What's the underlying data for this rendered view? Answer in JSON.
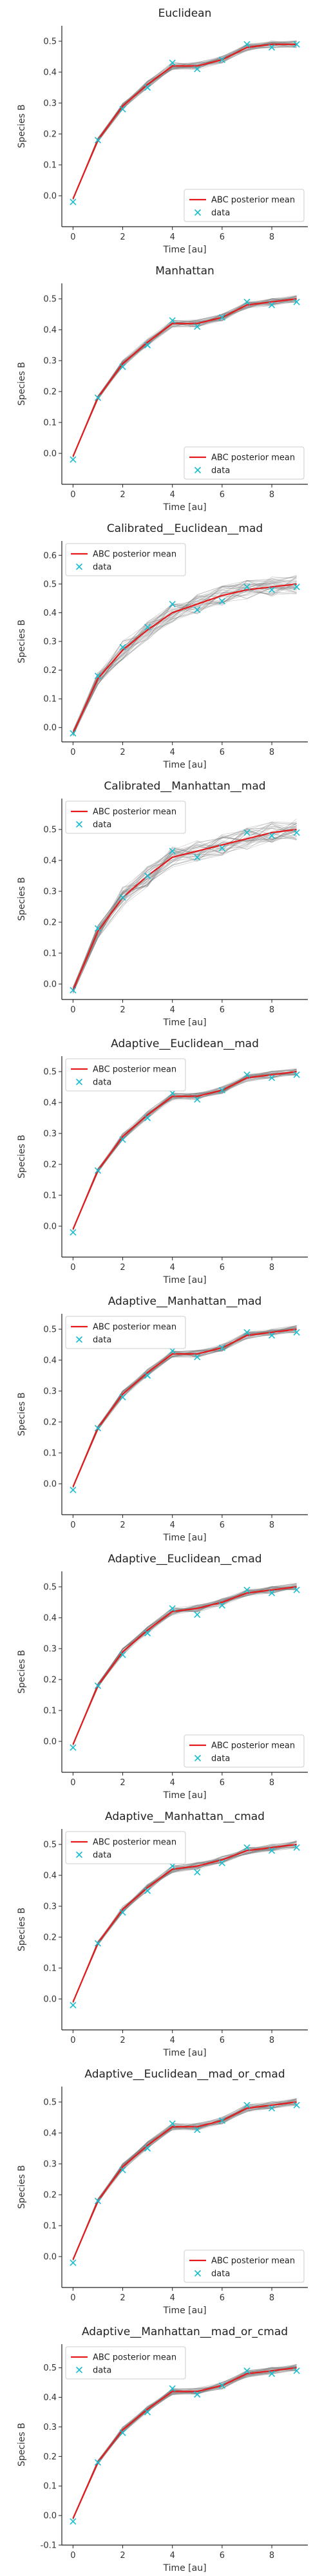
{
  "x_ticks": [
    0,
    2,
    4,
    6,
    8
  ],
  "xlabel": "Time [au]",
  "ylabel": "Species B",
  "legend": {
    "mean": "ABC posterior mean",
    "data": "data"
  },
  "colors": {
    "mean": "#e41a1c",
    "data": "#17becf",
    "samples": "#7f7f7f",
    "axis": "#222222"
  },
  "chart_data": [
    {
      "type": "line",
      "title": "Euclidean",
      "xlim": [
        -0.45,
        9.45
      ],
      "ylim": [
        -0.1,
        0.55
      ],
      "y_ticks": [
        0.0,
        0.1,
        0.2,
        0.3,
        0.4,
        0.5
      ],
      "legend_loc": "lower-right",
      "x": [
        0,
        1,
        2,
        3,
        4,
        5,
        6,
        7,
        8,
        9
      ],
      "data": [
        -0.02,
        0.18,
        0.28,
        0.35,
        0.43,
        0.41,
        0.44,
        0.49,
        0.48,
        0.49
      ],
      "mean": [
        -0.01,
        0.18,
        0.29,
        0.36,
        0.42,
        0.42,
        0.44,
        0.48,
        0.49,
        0.49
      ]
    },
    {
      "type": "line",
      "title": "Manhattan",
      "xlim": [
        -0.45,
        9.45
      ],
      "ylim": [
        -0.1,
        0.55
      ],
      "y_ticks": [
        0.0,
        0.1,
        0.2,
        0.3,
        0.4,
        0.5
      ],
      "legend_loc": "lower-right",
      "x": [
        0,
        1,
        2,
        3,
        4,
        5,
        6,
        7,
        8,
        9
      ],
      "data": [
        -0.02,
        0.18,
        0.28,
        0.35,
        0.43,
        0.41,
        0.44,
        0.49,
        0.48,
        0.49
      ],
      "mean": [
        -0.01,
        0.18,
        0.29,
        0.36,
        0.42,
        0.42,
        0.44,
        0.48,
        0.49,
        0.5
      ]
    },
    {
      "type": "line",
      "title": "Calibrated__Euclidean__mad",
      "xlim": [
        -0.45,
        9.45
      ],
      "ylim": [
        -0.05,
        0.65
      ],
      "y_ticks": [
        0.0,
        0.1,
        0.2,
        0.3,
        0.4,
        0.5,
        0.6
      ],
      "legend_loc": "upper-left",
      "x": [
        0,
        1,
        2,
        3,
        4,
        5,
        6,
        7,
        8,
        9
      ],
      "data": [
        -0.02,
        0.18,
        0.28,
        0.35,
        0.43,
        0.41,
        0.44,
        0.49,
        0.48,
        0.49
      ],
      "mean": [
        -0.02,
        0.17,
        0.27,
        0.34,
        0.4,
        0.43,
        0.46,
        0.48,
        0.49,
        0.5
      ]
    },
    {
      "type": "line",
      "title": "Calibrated__Manhattan__mad",
      "xlim": [
        -0.45,
        9.45
      ],
      "ylim": [
        -0.05,
        0.6
      ],
      "y_ticks": [
        0.0,
        0.1,
        0.2,
        0.3,
        0.4,
        0.5
      ],
      "legend_loc": "upper-left",
      "x": [
        0,
        1,
        2,
        3,
        4,
        5,
        6,
        7,
        8,
        9
      ],
      "data": [
        -0.02,
        0.18,
        0.28,
        0.35,
        0.43,
        0.41,
        0.44,
        0.49,
        0.48,
        0.49
      ],
      "mean": [
        -0.02,
        0.17,
        0.28,
        0.35,
        0.41,
        0.43,
        0.45,
        0.47,
        0.49,
        0.5
      ]
    },
    {
      "type": "line",
      "title": "Adaptive__Euclidean__mad",
      "xlim": [
        -0.45,
        9.45
      ],
      "ylim": [
        -0.1,
        0.55
      ],
      "y_ticks": [
        0.0,
        0.1,
        0.2,
        0.3,
        0.4,
        0.5
      ],
      "legend_loc": "upper-left",
      "x": [
        0,
        1,
        2,
        3,
        4,
        5,
        6,
        7,
        8,
        9
      ],
      "data": [
        -0.02,
        0.18,
        0.28,
        0.35,
        0.43,
        0.41,
        0.44,
        0.49,
        0.48,
        0.49
      ],
      "mean": [
        -0.01,
        0.18,
        0.29,
        0.36,
        0.42,
        0.42,
        0.44,
        0.48,
        0.49,
        0.5
      ]
    },
    {
      "type": "line",
      "title": "Adaptive__Manhattan__mad",
      "xlim": [
        -0.45,
        9.45
      ],
      "ylim": [
        -0.1,
        0.55
      ],
      "y_ticks": [
        0.0,
        0.1,
        0.2,
        0.3,
        0.4,
        0.5
      ],
      "legend_loc": "upper-left",
      "x": [
        0,
        1,
        2,
        3,
        4,
        5,
        6,
        7,
        8,
        9
      ],
      "data": [
        -0.02,
        0.18,
        0.28,
        0.35,
        0.43,
        0.41,
        0.44,
        0.49,
        0.48,
        0.49
      ],
      "mean": [
        -0.01,
        0.18,
        0.29,
        0.36,
        0.42,
        0.42,
        0.44,
        0.48,
        0.49,
        0.5
      ]
    },
    {
      "type": "line",
      "title": "Adaptive__Euclidean__cmad",
      "xlim": [
        -0.45,
        9.45
      ],
      "ylim": [
        -0.1,
        0.55
      ],
      "y_ticks": [
        0.0,
        0.1,
        0.2,
        0.3,
        0.4,
        0.5
      ],
      "legend_loc": "lower-right",
      "x": [
        0,
        1,
        2,
        3,
        4,
        5,
        6,
        7,
        8,
        9
      ],
      "data": [
        -0.02,
        0.18,
        0.28,
        0.35,
        0.43,
        0.41,
        0.44,
        0.49,
        0.48,
        0.49
      ],
      "mean": [
        -0.01,
        0.18,
        0.29,
        0.36,
        0.42,
        0.43,
        0.45,
        0.48,
        0.49,
        0.5
      ]
    },
    {
      "type": "line",
      "title": "Adaptive__Manhattan__cmad",
      "xlim": [
        -0.45,
        9.45
      ],
      "ylim": [
        -0.1,
        0.55
      ],
      "y_ticks": [
        0.0,
        0.1,
        0.2,
        0.3,
        0.4,
        0.5
      ],
      "legend_loc": "upper-left",
      "x": [
        0,
        1,
        2,
        3,
        4,
        5,
        6,
        7,
        8,
        9
      ],
      "data": [
        -0.02,
        0.18,
        0.28,
        0.35,
        0.43,
        0.41,
        0.44,
        0.49,
        0.48,
        0.49
      ],
      "mean": [
        -0.01,
        0.18,
        0.29,
        0.36,
        0.42,
        0.43,
        0.45,
        0.48,
        0.49,
        0.5
      ]
    },
    {
      "type": "line",
      "title": "Adaptive__Euclidean__mad_or_cmad",
      "xlim": [
        -0.45,
        9.45
      ],
      "ylim": [
        -0.1,
        0.55
      ],
      "y_ticks": [
        0.0,
        0.1,
        0.2,
        0.3,
        0.4,
        0.5
      ],
      "legend_loc": "lower-right",
      "x": [
        0,
        1,
        2,
        3,
        4,
        5,
        6,
        7,
        8,
        9
      ],
      "data": [
        -0.02,
        0.18,
        0.28,
        0.35,
        0.43,
        0.41,
        0.44,
        0.49,
        0.48,
        0.49
      ],
      "mean": [
        -0.01,
        0.18,
        0.29,
        0.36,
        0.42,
        0.42,
        0.44,
        0.48,
        0.49,
        0.5
      ]
    },
    {
      "type": "line",
      "title": "Adaptive__Manhattan__mad_or_cmad",
      "xlim": [
        -0.45,
        9.45
      ],
      "ylim": [
        -0.1,
        0.58
      ],
      "y_ticks": [
        -0.1,
        0.0,
        0.1,
        0.2,
        0.3,
        0.4,
        0.5
      ],
      "legend_loc": "upper-left",
      "x": [
        0,
        1,
        2,
        3,
        4,
        5,
        6,
        7,
        8,
        9
      ],
      "data": [
        -0.02,
        0.18,
        0.28,
        0.35,
        0.43,
        0.41,
        0.44,
        0.49,
        0.48,
        0.49
      ],
      "mean": [
        -0.01,
        0.18,
        0.29,
        0.36,
        0.42,
        0.42,
        0.44,
        0.48,
        0.49,
        0.5
      ]
    }
  ]
}
